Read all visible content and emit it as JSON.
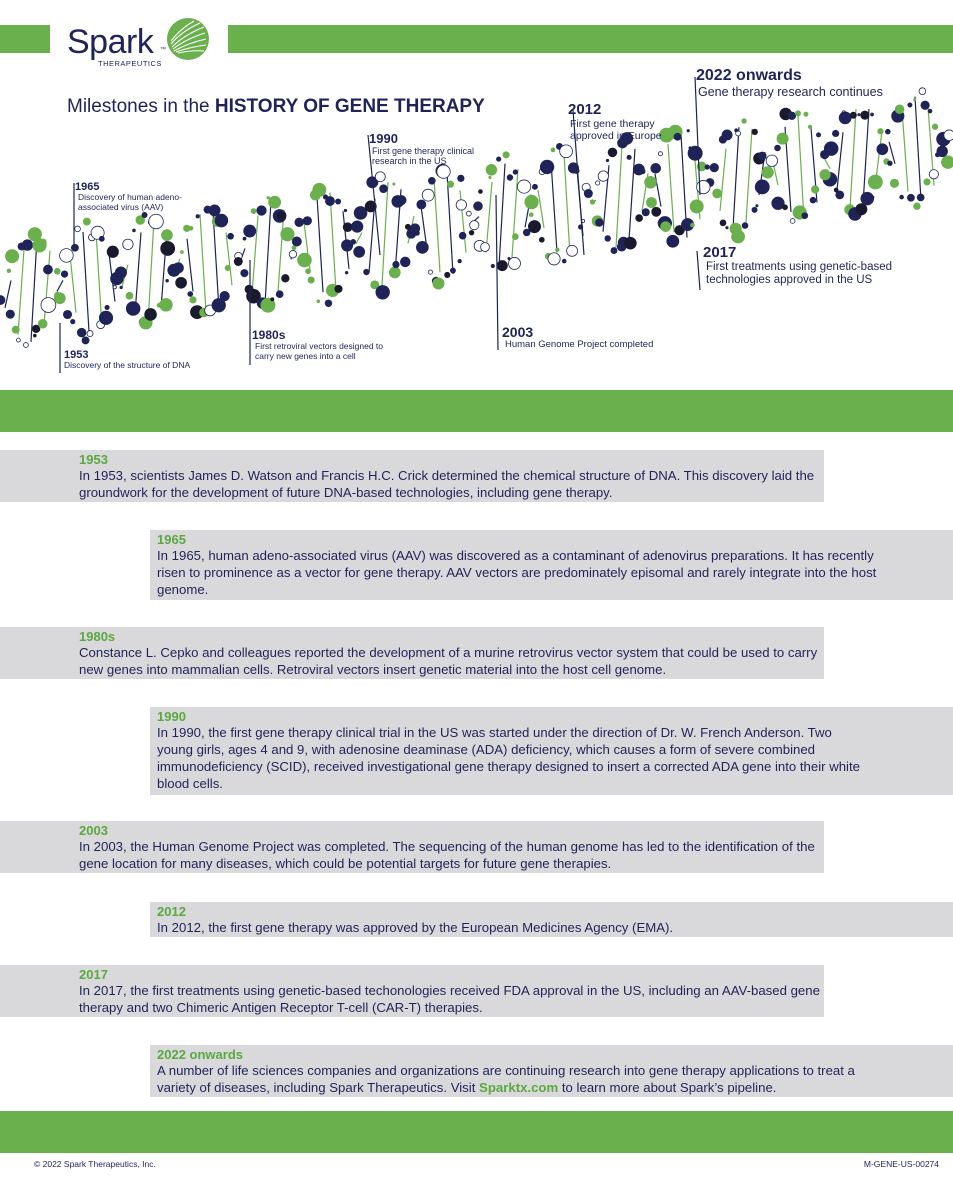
{
  "brand": {
    "name": "Spark",
    "trademark": "™",
    "sub": "THERAPEUTICS",
    "green": "#6ab04c",
    "navy": "#1f2357",
    "gray": "#d9d9db"
  },
  "headline": {
    "prefix": "Milestones in the",
    "emphasis": "HISTORY OF GENE THERAPY"
  },
  "timeline": [
    {
      "year": "1953",
      "label": "Discovery of the structure of DNA"
    },
    {
      "year": "1965",
      "label": "Discovery of human adeno-associated virus (AAV)"
    },
    {
      "year": "1980s",
      "label": "First retroviral vectors designed to carry new genes into a cell"
    },
    {
      "year": "1990",
      "label": "First gene therapy clinical research in the US"
    },
    {
      "year": "2003",
      "label": "Human Genome Project completed"
    },
    {
      "year": "2012",
      "label": "First gene therapy approved in Europe"
    },
    {
      "year": "2017",
      "label": "First treatments using genetic-based technologies approved in the US"
    },
    {
      "year": "2022 onwards",
      "label": "Gene therapy research continues"
    }
  ],
  "entries": [
    {
      "year": "1953",
      "text": "In 1953, scientists James D. Watson and Francis H.C. Crick determined the chemical structure of DNA. This discovery laid the groundwork for the development of future DNA-based technologies, including gene therapy."
    },
    {
      "year": "1965",
      "text": "In 1965, human adeno-associated virus (AAV) was discovered as a contaminant of adenovirus preparations. It has recently risen to prominence as a vector for gene therapy. AAV vectors are predominately episomal and rarely integrate into the host genome."
    },
    {
      "year": "1980s",
      "text": "Constance L. Cepko and colleagues reported the development of a murine retrovirus vector system that could be used to carry new genes into mammalian cells. Retroviral vectors insert genetic material into the host cell genome."
    },
    {
      "year": "1990",
      "text": "In 1990, the first gene therapy clinical trial in the US was started under the direction of Dr. W. French Anderson. Two young girls, ages 4 and 9, with adenosine deaminase (ADA) deficiency, which causes a form of severe combined immunodeficiency (SCID), received investigational gene therapy designed to insert a corrected ADA gene into their white blood cells."
    },
    {
      "year": "2003",
      "text": "In 2003, the Human Genome Project was completed. The sequencing of the human genome has led to the identification of the gene location for many diseases, which could be potential targets for future gene therapies."
    },
    {
      "year": "2012",
      "text": "In 2012, the first gene therapy was approved by the European Medicines Agency (EMA)."
    },
    {
      "year": "2017",
      "text": "In 2017, the first treatments using genetic-based techonologies received FDA approval in the US, including an AAV-based gene therapy and two Chimeric Antigen Receptor T-cell (CAR-T) therapies."
    },
    {
      "year": "2022 onwards",
      "text_before": "A number of life sciences companies and organizations are continuing research into gene therapy applications to treat a variety of diseases, including Spark Therapeutics. Visit",
      "link": "Sparktx.com",
      "text_after": "to learn more about Spark’s pipeline."
    }
  ],
  "footer": {
    "copyright": "© 2022 Spark Therapeutics, Inc.",
    "code": "M-GENE-US-00274"
  }
}
